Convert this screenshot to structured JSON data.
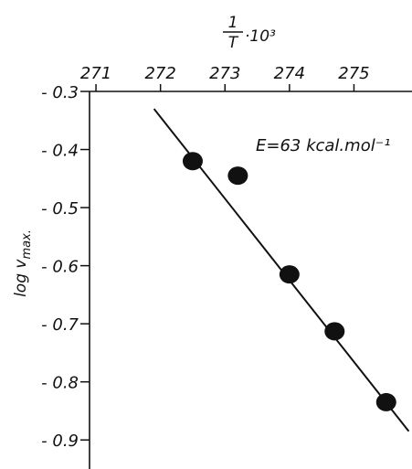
{
  "chart_data": {
    "type": "scatter",
    "x_top_title_numerator": "1",
    "x_top_title_denominator": "T",
    "x_top_title_suffix": "·10³",
    "ylabel": "log v",
    "ylabel_sub": "max.",
    "annotation": "E=63 kcal.mol⁻¹",
    "x_ticks": [
      271,
      272,
      273,
      274,
      275
    ],
    "x_tick_labels": [
      "271",
      "272",
      "273",
      "274",
      "275"
    ],
    "y_ticks": [
      -0.3,
      -0.4,
      -0.5,
      -0.6,
      -0.7,
      -0.8,
      -0.9
    ],
    "y_tick_labels": [
      "- 0.3",
      "- 0.4",
      "- 0.5",
      "- 0.6",
      "- 0.7",
      "- 0.8",
      "- 0.9"
    ],
    "xlim": [
      270.9,
      275.9
    ],
    "ylim": [
      -0.95,
      -0.3
    ],
    "series": [
      {
        "points": [
          {
            "x": 272.5,
            "y": -0.42
          },
          {
            "x": 273.2,
            "y": -0.445
          },
          {
            "x": 274.0,
            "y": -0.615
          },
          {
            "x": 274.7,
            "y": -0.713
          },
          {
            "x": 275.5,
            "y": -0.835
          }
        ]
      }
    ],
    "fit_line": {
      "x": [
        271.9,
        275.85
      ],
      "y": [
        -0.33,
        -0.885
      ]
    },
    "colors": {
      "ink": "#111111",
      "background": "#ffffff"
    }
  }
}
